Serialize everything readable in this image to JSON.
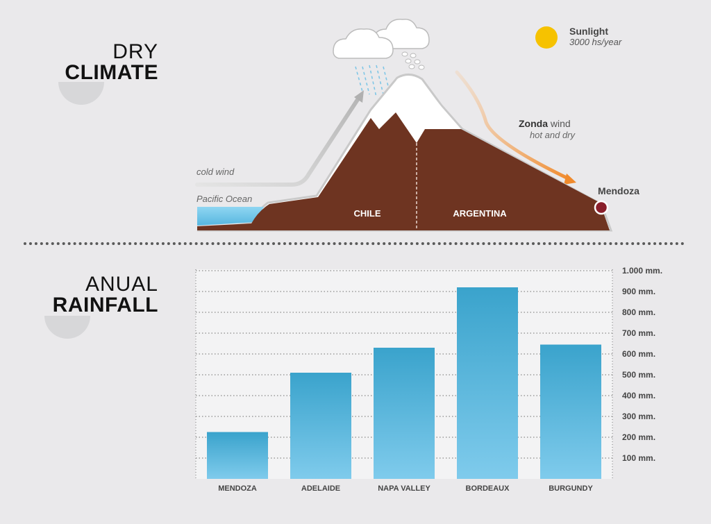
{
  "climate": {
    "title_light": "DRY",
    "title_bold": "CLIMATE",
    "sunlight_label": "Sunlight",
    "sunlight_value": "3000 hs/year",
    "zonda_bold": "Zonda",
    "zonda_rest": " wind",
    "zonda_sub": "hot and dry",
    "cold_wind": "cold wind",
    "pacific": "Pacific Ocean",
    "chile": "CHILE",
    "argentina": "ARGENTINA",
    "mendoza": "Mendoza",
    "colors": {
      "mountain": "#6e3421",
      "snow": "#ffffff",
      "ocean": "#6fc6ea",
      "sun": "#f6c200",
      "zonda": "#f08a2c",
      "cold_wind": "#c4c4c4",
      "mendoza_dot": "#8a1f2b"
    }
  },
  "rainfall": {
    "title_light": "ANUAL",
    "title_bold": "RAINFALL"
  },
  "chart_data": {
    "type": "bar",
    "categories": [
      "MENDOZA",
      "ADELAIDE",
      "NAPA VALLEY",
      "BORDEAUX",
      "BURGUNDY"
    ],
    "values": [
      225,
      510,
      630,
      920,
      645
    ],
    "ylim": [
      0,
      1000
    ],
    "yticks": [
      100,
      200,
      300,
      400,
      500,
      600,
      700,
      800,
      900,
      1000
    ],
    "ytick_labels": [
      "100 mm.",
      "200 mm.",
      "300 mm.",
      "400 mm.",
      "500 mm.",
      "600 mm.",
      "700 mm.",
      "800 mm.",
      "900 mm.",
      "1.000 mm."
    ],
    "grid": true,
    "bar_color_top": "#3aa3cc",
    "bar_color_bottom": "#7fcbec"
  }
}
